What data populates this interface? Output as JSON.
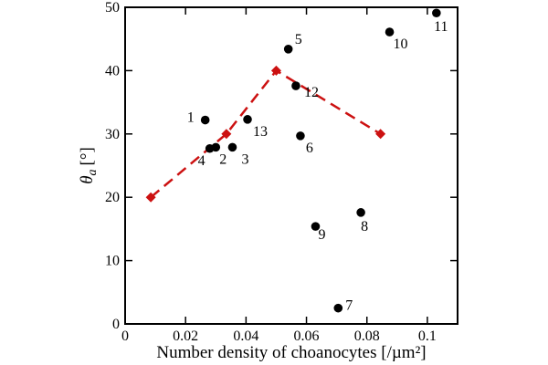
{
  "chart_data": {
    "type": "scatter",
    "title": "",
    "xlabel": "Number density of choanocytes [/µm²]",
    "ylabel": {
      "symbol": "θ",
      "subscript": "a",
      "unit": "[°]"
    },
    "xlim": [
      0,
      0.11
    ],
    "ylim": [
      0,
      50
    ],
    "x_ticks": [
      "0",
      "0.02",
      "0.04",
      "0.06",
      "0.08",
      "0.1"
    ],
    "y_ticks": [
      "0",
      "10",
      "20",
      "30",
      "40",
      "50"
    ],
    "grid": false,
    "legend": "none",
    "series": [
      {
        "marker": "circle",
        "color": "#000000",
        "points": [
          {
            "label": "1",
            "x": 0.0265,
            "y": 32.2
          },
          {
            "label": "2",
            "x": 0.03,
            "y": 27.9
          },
          {
            "label": "3",
            "x": 0.0355,
            "y": 27.9
          },
          {
            "label": "4",
            "x": 0.028,
            "y": 27.7
          },
          {
            "label": "5",
            "x": 0.054,
            "y": 43.4
          },
          {
            "label": "6",
            "x": 0.058,
            "y": 29.7
          },
          {
            "label": "7",
            "x": 0.0705,
            "y": 2.5
          },
          {
            "label": "8",
            "x": 0.078,
            "y": 17.6
          },
          {
            "label": "9",
            "x": 0.063,
            "y": 15.4
          },
          {
            "label": "10",
            "x": 0.0875,
            "y": 46.1
          },
          {
            "label": "11",
            "x": 0.103,
            "y": 49.1
          },
          {
            "label": "12",
            "x": 0.0565,
            "y": 37.6
          },
          {
            "label": "13",
            "x": 0.0405,
            "y": 32.3
          }
        ]
      },
      {
        "marker": "diamond",
        "line": "dashed",
        "color": "#cc1111",
        "points": [
          {
            "x": 0.0085,
            "y": 20
          },
          {
            "x": 0.0335,
            "y": 30
          },
          {
            "x": 0.05,
            "y": 40
          },
          {
            "x": 0.0845,
            "y": 30
          }
        ]
      }
    ]
  }
}
